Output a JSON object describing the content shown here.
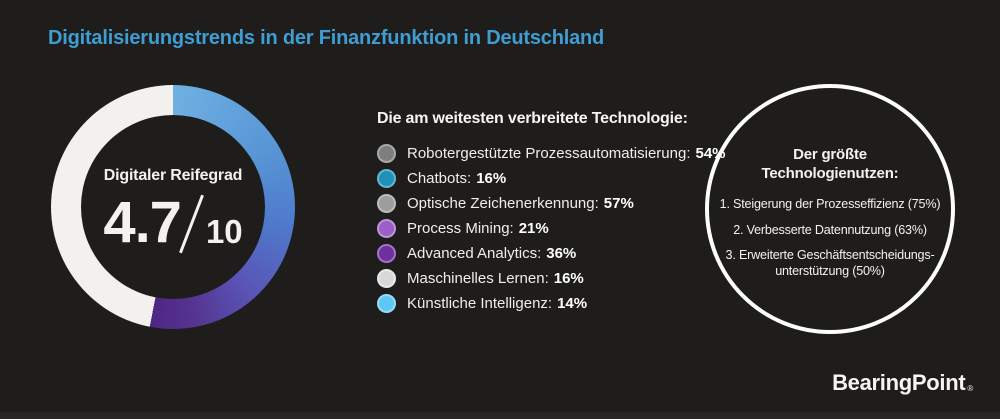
{
  "page": {
    "background_color": "#1e1d1b",
    "accent_blue": "#3f9dd3",
    "text_color": "#f3f2f0"
  },
  "header": {
    "title": "Digitalisierungstrends in der Finanzfunktion in Deutschland",
    "title_color": "#3f9dd3"
  },
  "gauge": {
    "label": "Digitaler Reifegrad",
    "score": "4.7",
    "max": "10",
    "arc_deg": 191,
    "track_color": "#f2f1ed",
    "gradient": [
      {
        "color": "#6fb0e2",
        "deg": 0
      },
      {
        "color": "#5795d6",
        "deg": 60
      },
      {
        "color": "#4f79cb",
        "deg": 100
      },
      {
        "color": "#5a52b4",
        "deg": 140
      },
      {
        "color": "#54348f",
        "deg": 170
      },
      {
        "color": "#4f2683",
        "deg": 191
      }
    ]
  },
  "technologies": {
    "heading": "Die am weitesten verbreitete Technologie:",
    "items": [
      {
        "label": "Robotergestützte Prozessautomatisierung:",
        "value": "54%",
        "color": "#7e7e7e",
        "ring": "#a9a9a9"
      },
      {
        "label": "Chatbots:",
        "value": "16%",
        "color": "#2090ba",
        "ring": "#63b5d1"
      },
      {
        "label": "Optische Zeichenerkennung:",
        "value": "57%",
        "color": "#9d9d9d",
        "ring": "#bcbcbc"
      },
      {
        "label": "Process Mining:",
        "value": "21%",
        "color": "#9b60c6",
        "ring": "#bd93da"
      },
      {
        "label": "Advanced Analytics:",
        "value": "36%",
        "color": "#6e2f9f",
        "ring": "#a274c4"
      },
      {
        "label": "Maschinelles Lernen:",
        "value": "16%",
        "color": "#d8d8d8",
        "ring": "#e9e9e9"
      },
      {
        "label": "Künstliche Intelligenz:",
        "value": "14%",
        "color": "#5ec7f3",
        "ring": "#97daf6"
      }
    ]
  },
  "benefits": {
    "heading": "Der größte Technologienutzen:",
    "items": [
      {
        "text": "1. Steigerung der Prozesseffizienz (75%)"
      },
      {
        "text": "2. Verbesserte Datennutzung (63%)"
      },
      {
        "text": "3. Erweiterte Geschäftsentscheidungs-",
        "text2": "unterstützung (50%)"
      }
    ]
  },
  "brand": {
    "name": "BearingPoint",
    "mark": "®"
  },
  "chart_data": [
    {
      "type": "gauge",
      "title": "Digitaler Reifegrad",
      "value": 4.7,
      "max": 10,
      "colored_arc_fraction": 0.53,
      "arc_colors": [
        "#6fb0e2",
        "#4f79cb",
        "#4f2683"
      ],
      "track_color": "#f2f1ed"
    },
    {
      "type": "bar",
      "title": "Die am weitesten verbreitete Technologie:",
      "categories": [
        "Robotergestützte Prozessautomatisierung",
        "Chatbots",
        "Optische Zeichenerkennung",
        "Process Mining",
        "Advanced Analytics",
        "Maschinelles Lernen",
        "Künstliche Intelligenz"
      ],
      "values": [
        54,
        16,
        57,
        21,
        36,
        16,
        14
      ],
      "unit": "%",
      "legend_colors": [
        "#7e7e7e",
        "#2090ba",
        "#9d9d9d",
        "#9b60c6",
        "#6e2f9f",
        "#d8d8d8",
        "#5ec7f3"
      ]
    },
    {
      "type": "table",
      "title": "Der größte Technologienutzen:",
      "categories": [
        "Steigerung der Prozesseffizienz",
        "Verbesserte Datennutzung",
        "Erweiterte Geschäftsentscheidungsunterstützung"
      ],
      "values": [
        75,
        63,
        50
      ],
      "unit": "%"
    }
  ]
}
